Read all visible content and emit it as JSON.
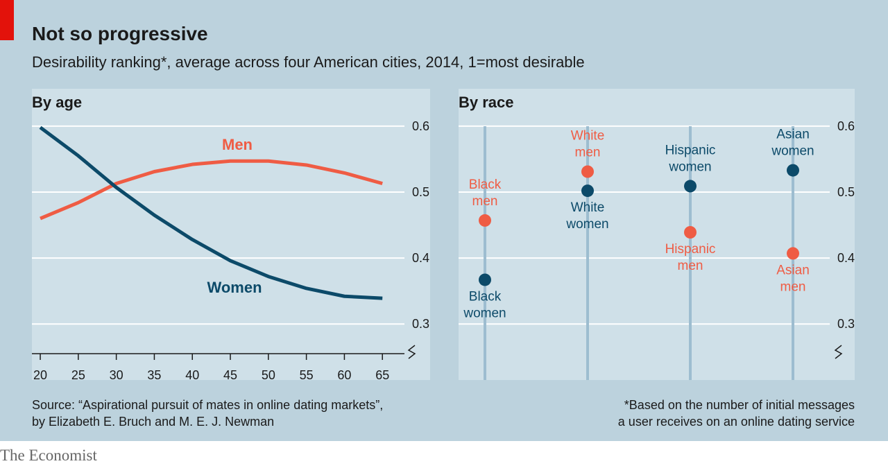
{
  "header": {
    "title": "Not so progressive",
    "subtitle": "Desirability ranking*, average across four American cities, 2014, 1=most desirable"
  },
  "chart_data": [
    {
      "type": "line",
      "title": "By age",
      "x": [
        20,
        25,
        30,
        35,
        40,
        45,
        50,
        55,
        60,
        65
      ],
      "series": [
        {
          "name": "Men",
          "color": "#ef5c44",
          "values": [
            0.46,
            0.484,
            0.513,
            0.531,
            0.542,
            0.547,
            0.547,
            0.541,
            0.529,
            0.513
          ]
        },
        {
          "name": "Women",
          "color": "#0c4a69",
          "values": [
            0.598,
            0.555,
            0.507,
            0.465,
            0.428,
            0.396,
            0.372,
            0.354,
            0.342,
            0.339
          ]
        }
      ],
      "xlim": [
        18.9,
        67.9
      ],
      "xticks": [
        20,
        25,
        30,
        35,
        40,
        45,
        50,
        55,
        60,
        65
      ],
      "ylim": [
        0.255,
        0.623
      ],
      "yticks": [
        0.3,
        0.4,
        0.5,
        0.6
      ],
      "grid": true
    },
    {
      "type": "dot",
      "title": "By race",
      "series": [
        {
          "name": "Men",
          "color": "#ef5c44",
          "values": [
            0.457,
            0.531,
            0.439,
            0.407
          ],
          "point_labels": [
            [
              "Black",
              "men"
            ],
            [
              "White",
              "men"
            ],
            [
              "Hispanic",
              "men"
            ],
            [
              "Asian",
              "men"
            ]
          ]
        },
        {
          "name": "Women",
          "color": "#0c4a69",
          "values": [
            0.367,
            0.502,
            0.509,
            0.533
          ],
          "point_labels": [
            [
              "Black",
              "women"
            ],
            [
              "White",
              "women"
            ],
            [
              "Hispanic",
              "women"
            ],
            [
              "Asian",
              "women"
            ]
          ]
        }
      ],
      "ylim": [
        0.255,
        0.623
      ],
      "yticks": [
        0.3,
        0.4,
        0.5,
        0.6
      ],
      "grid": true
    }
  ],
  "footer": {
    "source": [
      "Source: “Aspirational pursuit of mates in online dating markets”,",
      "by Elizabeth E. Bruch and M. E. J. Newman"
    ],
    "note": [
      "*Based on the number of initial messages",
      "a user receives on an online dating service"
    ],
    "brand": "The Economist"
  }
}
